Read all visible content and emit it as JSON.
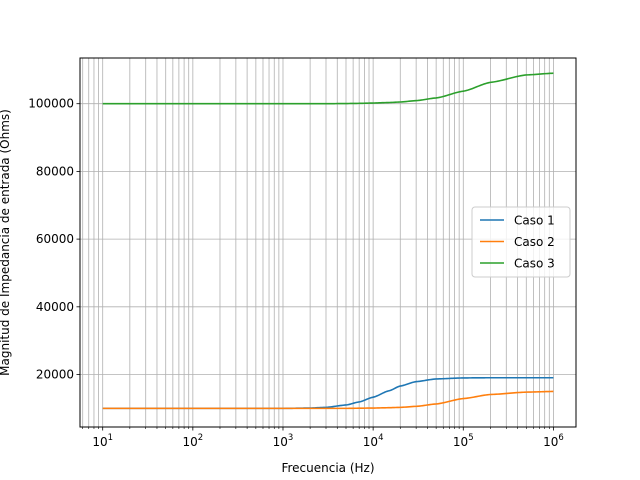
{
  "chart_data": {
    "type": "line",
    "xlabel": "Frecuencia (Hz)",
    "ylabel": "Magnitud de Impedancia de entrada (Ohms)",
    "xscale": "log",
    "xlim": [
      5.6,
      1780000
    ],
    "ylim": [
      4500,
      113500
    ],
    "xticks": [
      10,
      100,
      1000,
      10000,
      100000,
      1000000
    ],
    "xtick_labels": [
      {
        "base": "10",
        "exp": "1"
      },
      {
        "base": "10",
        "exp": "2"
      },
      {
        "base": "10",
        "exp": "3"
      },
      {
        "base": "10",
        "exp": "4"
      },
      {
        "base": "10",
        "exp": "5"
      },
      {
        "base": "10",
        "exp": "6"
      }
    ],
    "yticks": [
      20000,
      40000,
      60000,
      80000,
      100000
    ],
    "ytick_labels": [
      "20000",
      "40000",
      "60000",
      "80000",
      "100000"
    ],
    "grid": true,
    "grid_minor_x": true,
    "legend_position": "center-right",
    "x": [
      10,
      100,
      1000,
      2000,
      3000,
      5000,
      7000,
      10000,
      15000,
      20000,
      30000,
      50000,
      100000,
      200000,
      500000,
      1000000
    ],
    "series": [
      {
        "name": "Caso 1",
        "color": "#1f77b4",
        "values": [
          10000,
          10000,
          10000,
          10100,
          10300,
          11000,
          11900,
          13300,
          15200,
          16600,
          17900,
          18700,
          19000,
          19050,
          19050,
          19050
        ]
      },
      {
        "name": "Caso 2",
        "color": "#ff7f0e",
        "values": [
          10000,
          10000,
          10000,
          10000,
          10000,
          10000,
          10050,
          10100,
          10200,
          10300,
          10600,
          11300,
          12900,
          14100,
          14800,
          15000
        ]
      },
      {
        "name": "Caso 3",
        "color": "#2ca02c",
        "values": [
          100000,
          100000,
          100000,
          100000,
          100000,
          100050,
          100100,
          100200,
          100350,
          100500,
          100900,
          101700,
          103700,
          106300,
          108500,
          109000
        ]
      }
    ]
  }
}
